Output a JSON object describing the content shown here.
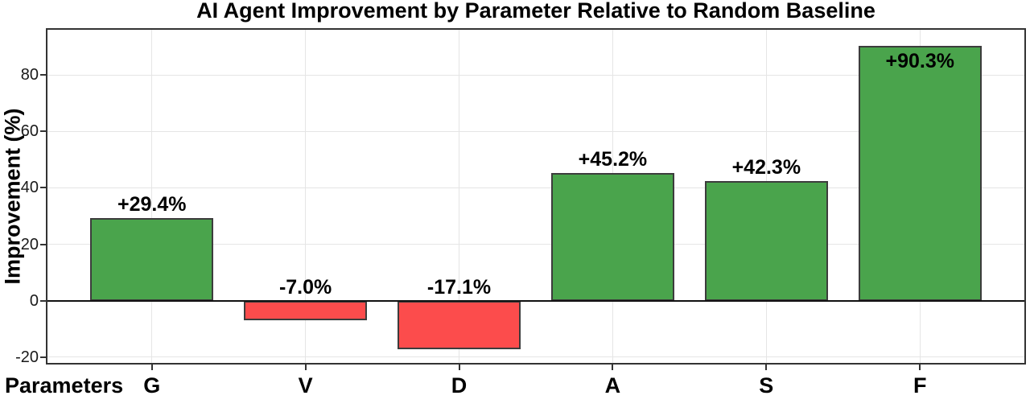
{
  "chart_data": {
    "type": "bar",
    "title": "AI Agent Improvement by Parameter Relative to Random Baseline",
    "xlabel": "Parameters",
    "ylabel": "Improvement (%)",
    "categories": [
      "G",
      "V",
      "D",
      "A",
      "S",
      "F"
    ],
    "values": [
      29.4,
      -7.0,
      -17.1,
      45.2,
      42.3,
      90.3
    ],
    "bar_labels": [
      "+29.4%",
      "-7.0%",
      "-17.1%",
      "+45.2%",
      "+42.3%",
      "+90.3%"
    ],
    "yticks": [
      -20,
      0,
      20,
      40,
      60,
      80
    ],
    "ylim": [
      -22.6,
      96.6
    ],
    "grid": true,
    "legend_position": "none",
    "colors": {
      "positive_bar": "#4AA44C",
      "negative_bar": "#FC4C4C",
      "bar_edge": "#3C3C3C",
      "gridline": "#E5E5E5",
      "axis_spine": "#333333",
      "zero_line": "#111111",
      "text": "#000000"
    }
  }
}
